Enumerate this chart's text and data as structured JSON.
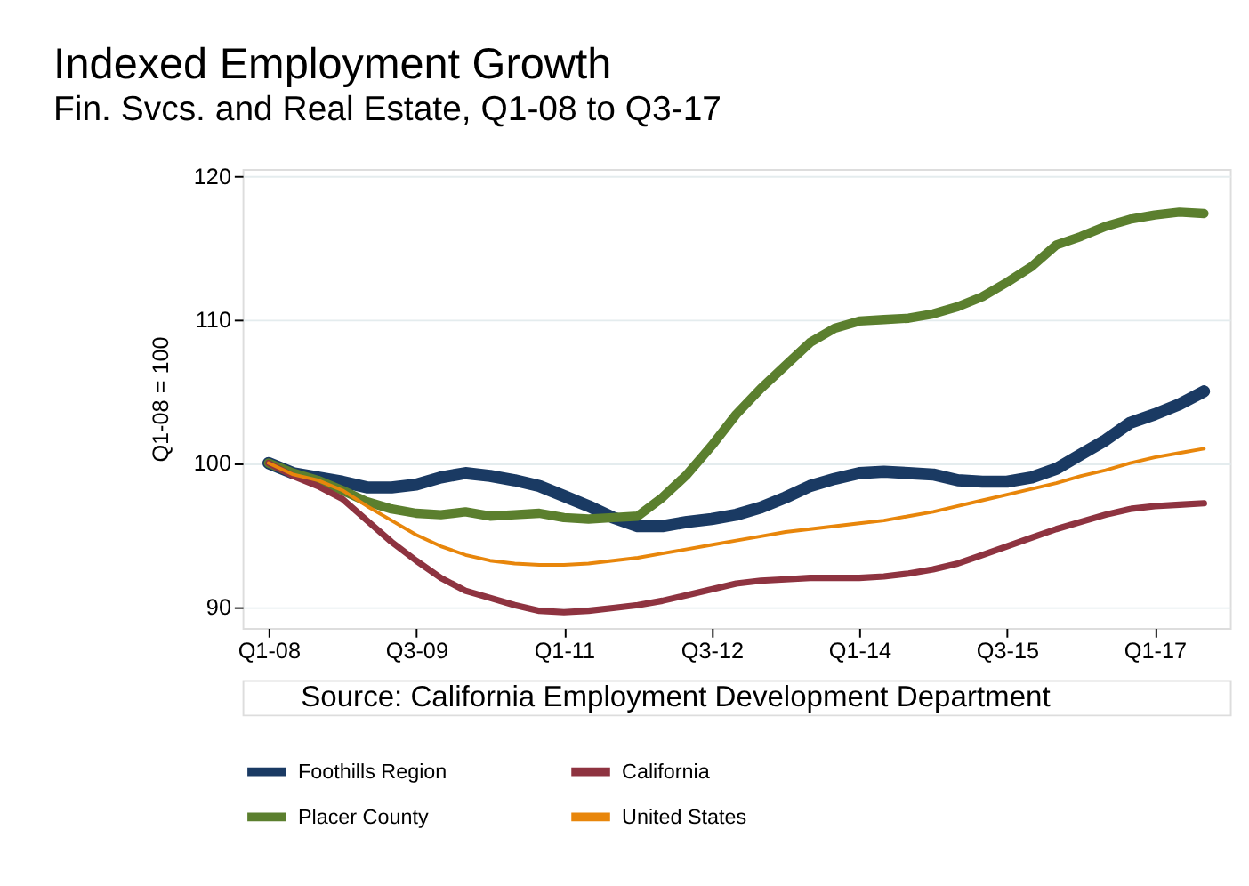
{
  "chart_data": {
    "type": "line",
    "title": "Indexed Employment Growth",
    "subtitle": "Fin. Svcs. and Real Estate, Q1-08 to Q3-17",
    "ylabel": "Q1-08 = 100",
    "categories": [
      "Q1-08",
      null,
      null,
      null,
      null,
      null,
      "Q3-09",
      null,
      null,
      null,
      null,
      null,
      "Q1-11",
      null,
      null,
      null,
      null,
      null,
      "Q3-12",
      null,
      null,
      null,
      null,
      null,
      "Q1-14",
      null,
      null,
      null,
      null,
      null,
      "Q3-15",
      null,
      null,
      null,
      null,
      null,
      "Q1-17",
      null,
      null
    ],
    "series": [
      {
        "name": "Foothills Region",
        "color": "#1a3a63",
        "values": [
          100,
          99.3,
          99.0,
          98.7,
          98.3,
          98.3,
          98.5,
          99.0,
          99.3,
          99.1,
          98.8,
          98.4,
          97.7,
          97.0,
          96.2,
          95.6,
          95.6,
          95.9,
          96.1,
          96.4,
          96.9,
          97.6,
          98.4,
          98.9,
          99.3,
          99.4,
          99.3,
          99.2,
          98.8,
          98.7,
          98.7,
          99.0,
          99.6,
          100.6,
          101.6,
          102.8,
          103.4,
          104.1,
          105.0
        ]
      },
      {
        "name": "Placer County",
        "color": "#5b7f2e",
        "values": [
          100,
          99.3,
          98.8,
          98.1,
          97.3,
          96.8,
          96.5,
          96.4,
          96.6,
          96.3,
          96.4,
          96.5,
          96.2,
          96.1,
          96.2,
          96.3,
          97.6,
          99.2,
          101.2,
          103.4,
          105.2,
          106.8,
          108.4,
          109.4,
          109.9,
          110.0,
          110.1,
          110.4,
          110.9,
          111.6,
          112.6,
          113.7,
          115.2,
          115.8,
          116.5,
          117.0,
          117.3,
          117.5,
          117.4
        ]
      },
      {
        "name": "California",
        "color": "#8e3340",
        "values": [
          100,
          99.1,
          98.4,
          97.5,
          96.0,
          94.5,
          93.2,
          92.0,
          91.1,
          90.6,
          90.1,
          89.7,
          89.6,
          89.7,
          89.9,
          90.1,
          90.4,
          90.8,
          91.2,
          91.6,
          91.8,
          91.9,
          92.0,
          92.0,
          92.0,
          92.1,
          92.3,
          92.6,
          93.0,
          93.6,
          94.2,
          94.8,
          95.4,
          95.9,
          96.4,
          96.8,
          97.0,
          97.1,
          97.2
        ]
      },
      {
        "name": "United States",
        "color": "#e8860b",
        "values": [
          100,
          99.2,
          98.8,
          98.1,
          97.0,
          96.0,
          95.0,
          94.2,
          93.6,
          93.2,
          93.0,
          92.9,
          92.9,
          93.0,
          93.2,
          93.4,
          93.7,
          94.0,
          94.3,
          94.6,
          94.9,
          95.2,
          95.4,
          95.6,
          95.8,
          96.0,
          96.3,
          96.6,
          97.0,
          97.4,
          97.8,
          98.2,
          98.6,
          99.1,
          99.5,
          100.0,
          100.4,
          100.7,
          101.0
        ]
      }
    ],
    "ylim": [
      88.5,
      120.5
    ],
    "yticks": [
      90,
      100,
      110,
      120
    ],
    "grid": "y",
    "legend": "bottom",
    "annotations": [
      "Source: California Employment Development Department"
    ]
  }
}
